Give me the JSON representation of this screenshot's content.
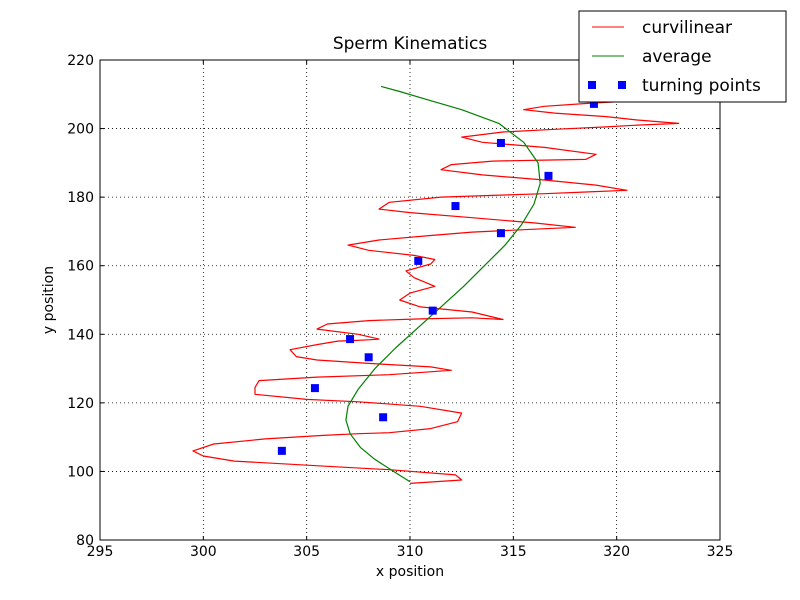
{
  "chart_data": {
    "type": "line",
    "title": "Sperm Kinematics",
    "xlabel": "x position",
    "ylabel": "y position",
    "xlim": [
      295,
      325
    ],
    "ylim": [
      80,
      220
    ],
    "xticks": [
      "295",
      "300",
      "305",
      "310",
      "315",
      "320",
      "325"
    ],
    "yticks": [
      "80",
      "100",
      "120",
      "140",
      "160",
      "180",
      "200",
      "220"
    ],
    "grid": true,
    "legend_position": "top-right",
    "series": [
      {
        "name": "curvilinear",
        "type": "line",
        "color": "#ff0000",
        "x": [
          310.0,
          312.5,
          312.2,
          309.0,
          306.0,
          301.5,
          300.0,
          299.5,
          300.5,
          303.0,
          305.8,
          307.5,
          309.0,
          311.0,
          312.3,
          312.5,
          310.5,
          307.5,
          305.0,
          302.5,
          302.5,
          302.7,
          305.5,
          309.0,
          312.0,
          311.0,
          308.0,
          305.5,
          304.5,
          304.2,
          305.5,
          306.5,
          307.3,
          308.0,
          308.5,
          307.5,
          305.5,
          306.0,
          308.0,
          310.5,
          313.0,
          314.5,
          313.0,
          310.5,
          309.5,
          310.0,
          311.2,
          310.2,
          309.8,
          311.0,
          311.2,
          310.2,
          308.0,
          307.0,
          308.5,
          311.0,
          313.0,
          315.5,
          318.0,
          316.0,
          313.0,
          310.0,
          308.5,
          309.0,
          311.5,
          314.0,
          316.5,
          318.5,
          320.5,
          319.0,
          316.5,
          313.5,
          311.5,
          312.0,
          314.0,
          316.5,
          318.5,
          319.0,
          316.5,
          313.5,
          312.5,
          314.5,
          317.0,
          319.5,
          321.0,
          323.0,
          321.0,
          319.5,
          317.0,
          315.5,
          316.5,
          318.5,
          320.0,
          322.5
        ],
        "y": [
          96.5,
          97.5,
          99.0,
          100.5,
          101.5,
          103.0,
          104.5,
          106.0,
          108.0,
          109.5,
          110.5,
          111.0,
          111.3,
          112.5,
          114.5,
          117.0,
          119.0,
          120.3,
          121.0,
          122.5,
          124.5,
          126.5,
          127.5,
          128.2,
          129.5,
          130.5,
          131.5,
          132.5,
          133.5,
          135.5,
          137.0,
          138.0,
          138.2,
          138.4,
          138.6,
          140.0,
          141.5,
          143.0,
          144.0,
          144.5,
          144.8,
          144.3,
          146.5,
          148.0,
          150.0,
          152.0,
          154.0,
          156.5,
          158.5,
          160.5,
          161.8,
          163.0,
          164.5,
          166.0,
          167.5,
          168.8,
          169.8,
          170.5,
          171.2,
          172.5,
          174.0,
          175.5,
          176.5,
          178.5,
          180.0,
          180.5,
          181.0,
          181.5,
          182.0,
          183.5,
          185.0,
          186.5,
          188.0,
          189.5,
          190.5,
          190.8,
          191.0,
          192.5,
          194.5,
          196.0,
          197.5,
          199.0,
          199.8,
          200.5,
          201.0,
          201.5,
          202.5,
          203.5,
          204.5,
          205.5,
          206.5,
          207.3,
          207.8,
          208.5
        ]
      },
      {
        "name": "average",
        "type": "line",
        "color": "#008000",
        "x": [
          310.0,
          309.2,
          308.3,
          307.6,
          307.1,
          306.9,
          307.0,
          307.5,
          308.3,
          309.3,
          310.4,
          311.5,
          312.6,
          313.6,
          314.6,
          315.4,
          316.0,
          316.3,
          316.2,
          315.5,
          314.3,
          312.5,
          310.8,
          309.5,
          308.6
        ],
        "y": [
          97.0,
          100.0,
          103.5,
          107.0,
          111.0,
          115.0,
          119.0,
          124.0,
          130.0,
          136.0,
          142.0,
          148.0,
          154.0,
          160.0,
          166.0,
          172.0,
          178.0,
          184.0,
          190.0,
          196.0,
          201.5,
          205.5,
          208.5,
          210.8,
          212.3
        ]
      },
      {
        "name": "turning points",
        "type": "scatter",
        "color": "#0000ff",
        "x": [
          303.8,
          308.7,
          305.4,
          308.0,
          307.1,
          311.1,
          310.4,
          314.4,
          312.2,
          316.7,
          314.4,
          318.9
        ],
        "y": [
          106.0,
          115.8,
          124.3,
          133.3,
          138.6,
          146.9,
          161.4,
          169.5,
          177.4,
          186.2,
          195.8,
          207.2
        ]
      }
    ]
  }
}
